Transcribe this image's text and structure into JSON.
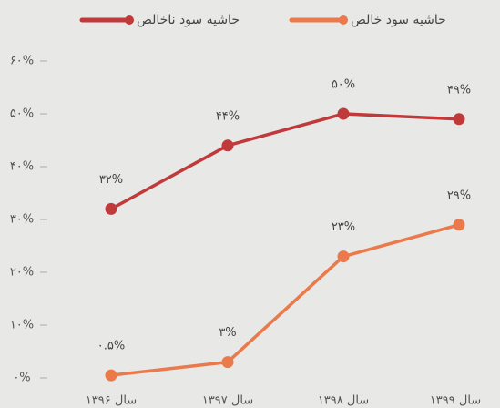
{
  "chart_data": {
    "type": "line",
    "categories": [
      "سال ۱۳۹۶",
      "سال ۱۳۹۷",
      "سال ۱۳۹۸",
      "سال ۱۳۹۹"
    ],
    "series": [
      {
        "name": "حاشیه سود ناخالص",
        "color": "#c0393b",
        "values": [
          32,
          44,
          50,
          49
        ],
        "value_labels": [
          "۳۲%",
          "۴۴%",
          "۵۰%",
          "۴۹%"
        ]
      },
      {
        "name": "حاشیه سود خالص",
        "color": "#ea7a4b",
        "values": [
          0.5,
          3,
          23,
          29
        ],
        "value_labels": [
          "۰.۵%",
          "۳%",
          "۲۳%",
          "۲۹%"
        ]
      }
    ],
    "ylim": [
      0,
      60
    ],
    "yticks": [
      {
        "value": 0,
        "label": "۰%"
      },
      {
        "value": 10,
        "label": "۱۰%"
      },
      {
        "value": 20,
        "label": "۲۰%"
      },
      {
        "value": 30,
        "label": "۳۰%"
      },
      {
        "value": 40,
        "label": "۴۰%"
      },
      {
        "value": 50,
        "label": "۵۰%"
      },
      {
        "value": 60,
        "label": "۶۰%"
      }
    ],
    "legend": "top"
  }
}
